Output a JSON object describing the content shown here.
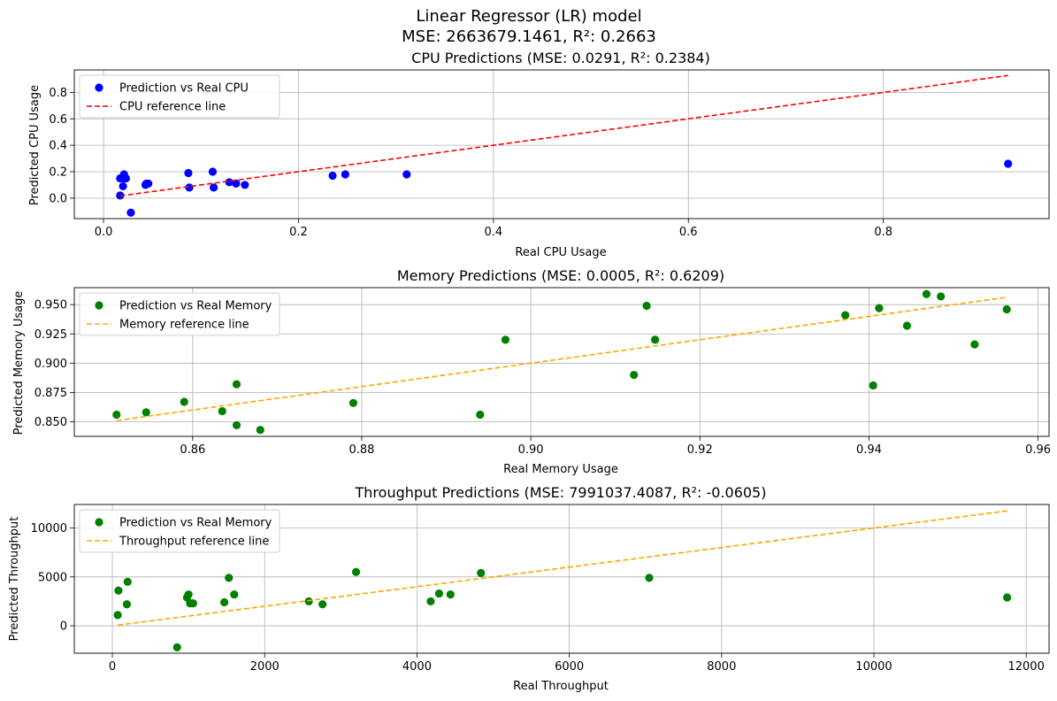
{
  "figure": {
    "title_line1": "Linear Regressor (LR) model",
    "title_line2": "MSE: 2663679.1461, R²: 0.2663"
  },
  "chart_data": [
    {
      "type": "scatter",
      "title": "CPU Predictions (MSE: 0.0291, R²: 0.2384)",
      "xlabel": "Real CPU Usage",
      "ylabel": "Predicted CPU Usage",
      "xlim": [
        -0.03,
        0.97
      ],
      "ylim": [
        -0.155,
        0.97
      ],
      "xticks": [
        0.0,
        0.2,
        0.4,
        0.6,
        0.8
      ],
      "xtick_labels": [
        "0.0",
        "0.2",
        "0.4",
        "0.6",
        "0.8"
      ],
      "yticks": [
        0.0,
        0.2,
        0.4,
        0.6,
        0.8
      ],
      "ytick_labels": [
        "0.0",
        "0.2",
        "0.4",
        "0.6",
        "0.8"
      ],
      "grid": true,
      "legend_position": "upper-left",
      "series": [
        {
          "name": "Prediction vs Real CPU",
          "kind": "scatter",
          "color": "#0000ff",
          "x": [
            0.017,
            0.017,
            0.02,
            0.021,
            0.021,
            0.023,
            0.028,
            0.043,
            0.044,
            0.046,
            0.087,
            0.088,
            0.112,
            0.113,
            0.129,
            0.136,
            0.145,
            0.235,
            0.248,
            0.311,
            0.928
          ],
          "y": [
            0.02,
            0.15,
            0.09,
            0.15,
            0.18,
            0.15,
            -0.11,
            0.1,
            0.11,
            0.11,
            0.19,
            0.08,
            0.2,
            0.08,
            0.12,
            0.11,
            0.1,
            0.17,
            0.18,
            0.18,
            0.26
          ]
        },
        {
          "name": "CPU reference line",
          "kind": "line",
          "style": "dashed",
          "color": "#ff0000",
          "x": [
            0.017,
            0.928
          ],
          "y": [
            0.017,
            0.928
          ]
        }
      ]
    },
    {
      "type": "scatter",
      "title": "Memory Predictions (MSE: 0.0005, R²: 0.6209)",
      "xlabel": "Real Memory Usage",
      "ylabel": "Predicted Memory Usage",
      "xlim": [
        0.846,
        0.9613
      ],
      "ylim": [
        0.8375,
        0.9645
      ],
      "xticks": [
        0.86,
        0.88,
        0.9,
        0.92,
        0.94,
        0.96
      ],
      "xtick_labels": [
        "0.86",
        "0.88",
        "0.90",
        "0.92",
        "0.94",
        "0.96"
      ],
      "yticks": [
        0.85,
        0.875,
        0.9,
        0.925,
        0.95
      ],
      "ytick_labels": [
        "0.850",
        "0.875",
        "0.900",
        "0.925",
        "0.950"
      ],
      "grid": true,
      "legend_position": "upper-left",
      "series": [
        {
          "name": "Prediction vs Real Memory",
          "kind": "scatter",
          "color": "#008000",
          "x": [
            0.851,
            0.8545,
            0.859,
            0.8635,
            0.8652,
            0.8652,
            0.868,
            0.879,
            0.894,
            0.897,
            0.9122,
            0.9137,
            0.9147,
            0.9372,
            0.9412,
            0.9445,
            0.9405,
            0.9468,
            0.9485,
            0.9525,
            0.9563
          ],
          "y": [
            0.856,
            0.858,
            0.867,
            0.859,
            0.847,
            0.882,
            0.843,
            0.866,
            0.856,
            0.92,
            0.89,
            0.949,
            0.92,
            0.941,
            0.947,
            0.932,
            0.881,
            0.959,
            0.957,
            0.916,
            0.946
          ]
        },
        {
          "name": "Memory reference line",
          "kind": "line",
          "style": "dashed",
          "color": "#ffa500",
          "x": [
            0.851,
            0.9563
          ],
          "y": [
            0.851,
            0.9563
          ]
        }
      ]
    },
    {
      "type": "scatter",
      "title": "Throughput Predictions (MSE: 7991037.4087, R²: -0.0605)",
      "xlabel": "Real Throughput",
      "ylabel": "Predicted Throughput",
      "xlim": [
        -500,
        12300
      ],
      "ylim": [
        -2800,
        12400
      ],
      "xticks": [
        0,
        2000,
        4000,
        6000,
        8000,
        10000,
        12000
      ],
      "xtick_labels": [
        "0",
        "2000",
        "4000",
        "6000",
        "8000",
        "10000",
        "12000"
      ],
      "yticks": [
        0,
        5000,
        10000
      ],
      "ytick_labels": [
        "0",
        "5000",
        "10000"
      ],
      "grid": true,
      "legend_position": "upper-left",
      "series": [
        {
          "name": "Prediction vs Real Memory",
          "kind": "scatter",
          "color": "#008000",
          "x": [
            70,
            80,
            190,
            200,
            850,
            980,
            1000,
            1020,
            1060,
            1470,
            1530,
            1600,
            2580,
            2760,
            3200,
            4180,
            4290,
            4440,
            4840,
            7050,
            11750
          ],
          "y": [
            1100,
            3600,
            2200,
            4500,
            -2200,
            2900,
            3200,
            2300,
            2300,
            2400,
            4900,
            3200,
            2500,
            2200,
            5500,
            2500,
            3300,
            3200,
            5400,
            4900,
            2900
          ]
        },
        {
          "name": "Throughput reference line",
          "kind": "line",
          "style": "dashed",
          "color": "#ffa500",
          "x": [
            70,
            11750
          ],
          "y": [
            70,
            11750
          ]
        }
      ]
    }
  ]
}
